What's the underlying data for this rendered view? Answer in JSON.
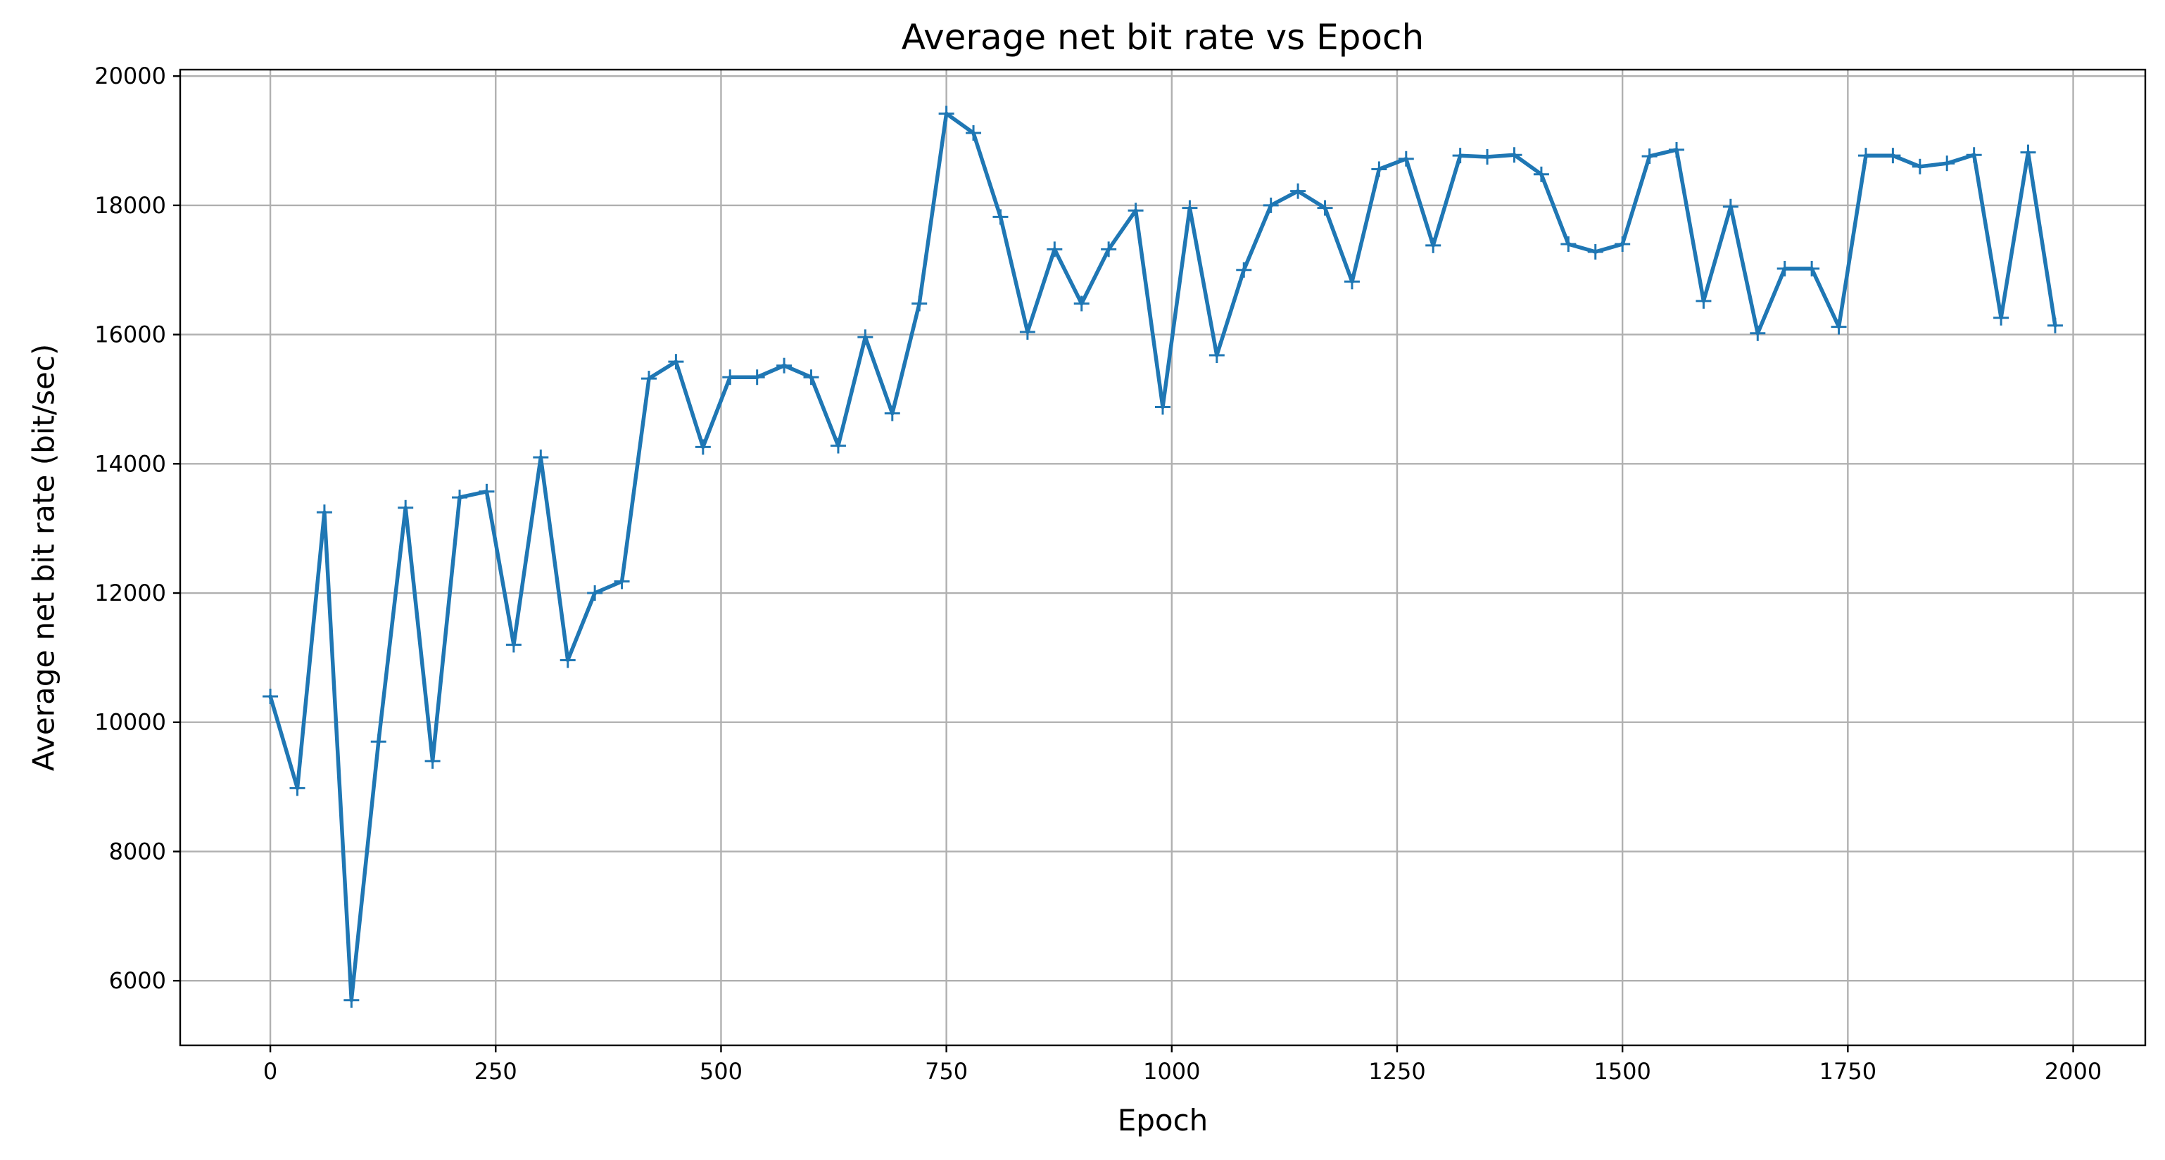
{
  "chart_data": {
    "type": "line",
    "title": "Average net bit rate vs Epoch",
    "xlabel": "Epoch",
    "ylabel": "Average net bit rate (bit/sec)",
    "xlim": [
      -100,
      2080
    ],
    "ylim": [
      5000,
      20100
    ],
    "xticks": [
      0,
      250,
      500,
      750,
      1000,
      1250,
      1500,
      1750,
      2000
    ],
    "yticks": [
      6000,
      8000,
      10000,
      12000,
      14000,
      16000,
      18000,
      20000
    ],
    "grid": true,
    "color": "#1f77b4",
    "marker": "+",
    "series": [
      {
        "x": [
          0,
          30,
          60,
          90,
          120,
          150,
          180,
          210,
          240,
          270,
          300,
          330,
          360,
          390,
          420,
          450,
          480,
          510,
          540,
          570,
          600,
          630,
          660,
          690,
          720,
          750,
          780,
          810,
          840,
          870,
          900,
          930,
          960,
          990,
          1020,
          1050,
          1080,
          1110,
          1140,
          1170,
          1200,
          1230,
          1260,
          1290,
          1320,
          1350,
          1380,
          1410,
          1440,
          1470,
          1500,
          1530,
          1560,
          1590,
          1620,
          1650,
          1680,
          1710,
          1740,
          1770,
          1800,
          1830,
          1860,
          1890,
          1920,
          1950,
          1980
        ],
        "values": [
          10400,
          8980,
          13250,
          5700,
          9700,
          13320,
          9400,
          13480,
          13570,
          11200,
          14100,
          10960,
          12000,
          12180,
          15320,
          15580,
          14260,
          15340,
          15340,
          15520,
          15340,
          14280,
          15960,
          14780,
          16480,
          19420,
          19120,
          17820,
          16040,
          17320,
          16480,
          17320,
          17920,
          14880,
          17960,
          15680,
          17000,
          18000,
          18220,
          17960,
          16820,
          18560,
          18720,
          17380,
          18770,
          18750,
          18780,
          18480,
          17400,
          17280,
          17400,
          18760,
          18860,
          16520,
          17980,
          16020,
          17020,
          17020,
          16120,
          18770,
          18770,
          18600,
          18650,
          18780,
          16260,
          18820,
          16140
        ]
      }
    ]
  }
}
